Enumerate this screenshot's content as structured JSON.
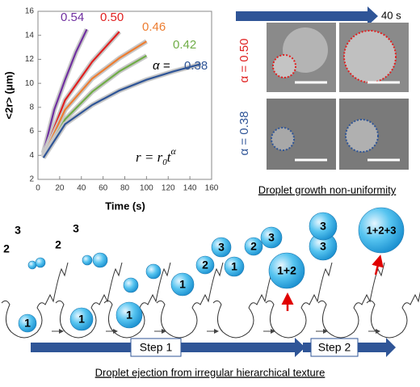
{
  "chart_data": {
    "type": "line",
    "x_label": "Time (s)",
    "y_label": "<2r> (μm)",
    "xlim": [
      0,
      160
    ],
    "xticks": [
      0,
      20,
      40,
      60,
      80,
      100,
      120,
      140,
      160
    ],
    "ylim": [
      2,
      16
    ],
    "yticks": [
      2,
      4,
      6,
      8,
      10,
      12,
      14,
      16
    ],
    "alpha_label": "α =",
    "formula": [
      "r = r",
      "0",
      "t",
      "α"
    ],
    "series": [
      {
        "name": "0.54",
        "color": "#7030a0",
        "x": [
          5,
          15,
          25,
          35,
          45
        ],
        "values": [
          4.2,
          7.8,
          10.3,
          12.6,
          14.5
        ]
      },
      {
        "name": "0.50",
        "color": "#e02020",
        "x": [
          5,
          25,
          50,
          75
        ],
        "values": [
          4.0,
          8.6,
          11.8,
          14.3
        ]
      },
      {
        "name": "0.46",
        "color": "#ed7d31",
        "x": [
          5,
          25,
          50,
          75,
          100
        ],
        "values": [
          3.9,
          7.8,
          10.4,
          12.1,
          13.5
        ]
      },
      {
        "name": "0.42",
        "color": "#70ad47",
        "x": [
          5,
          25,
          50,
          75,
          100
        ],
        "values": [
          3.8,
          7.0,
          9.3,
          11.0,
          12.3
        ]
      },
      {
        "name": "0.38",
        "color": "#2f5597",
        "x": [
          5,
          25,
          50,
          75,
          100,
          125,
          150
        ],
        "values": [
          3.8,
          6.6,
          8.2,
          9.4,
          10.3,
          11.0,
          11.6
        ]
      }
    ]
  },
  "micrographs": {
    "time_label": "40 s",
    "row_labels": [
      "α = 0.50",
      "α = 0.38"
    ],
    "caption": "Droplet growth non-uniformity"
  },
  "diagram": {
    "stages": [
      [
        "1",
        "2",
        "3"
      ],
      [
        "1",
        "2",
        "3"
      ],
      [
        "1"
      ],
      [
        "1",
        "2",
        "3"
      ],
      [
        "1",
        "2",
        "3"
      ],
      [
        "1+2",
        "3"
      ],
      [
        "3"
      ],
      [
        "1+2+3"
      ]
    ],
    "steps": [
      "Step 1",
      "Step 2"
    ],
    "caption": "Droplet ejection from irregular hierarchical texture"
  }
}
